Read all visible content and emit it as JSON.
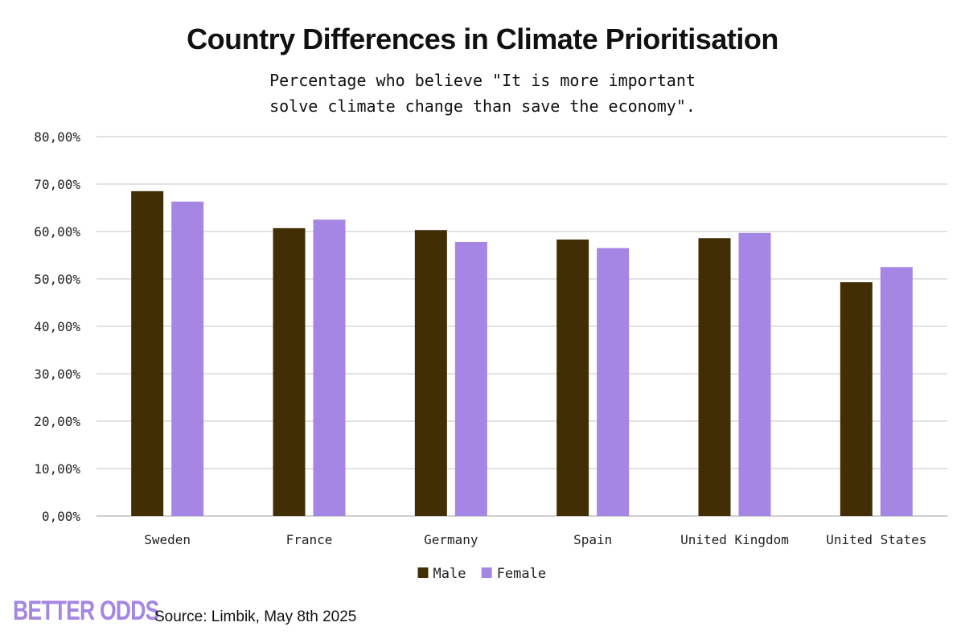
{
  "chart_data": {
    "type": "bar",
    "title": "Country Differences in Climate Prioritisation",
    "subtitle": "Percentage who believe \"It is more important solve climate change than save the economy\".",
    "categories": [
      "Sweden",
      "France",
      "Germany",
      "Spain",
      "United Kingdom",
      "United States"
    ],
    "series": [
      {
        "name": "Male",
        "color": "#422e05",
        "values": [
          68.5,
          60.7,
          60.3,
          58.3,
          58.6,
          49.3
        ]
      },
      {
        "name": "Female",
        "color": "#a586e4",
        "values": [
          66.3,
          62.5,
          57.8,
          56.5,
          59.7,
          52.5
        ]
      }
    ],
    "ylim": [
      0,
      80
    ],
    "yticks": [
      0,
      10,
      20,
      30,
      40,
      50,
      60,
      70,
      80
    ],
    "ytick_labels": [
      "0,00%",
      "10,00%",
      "20,00%",
      "30,00%",
      "40,00%",
      "50,00%",
      "60,00%",
      "70,00%",
      "80,00%"
    ],
    "xlabel": "",
    "ylabel": "",
    "grid": true,
    "legend_position": "bottom"
  },
  "footer": {
    "logo": "BETTER ODDS",
    "logo_color": "#a586e4",
    "source": "Source: Limbik, May 8th 2025"
  }
}
